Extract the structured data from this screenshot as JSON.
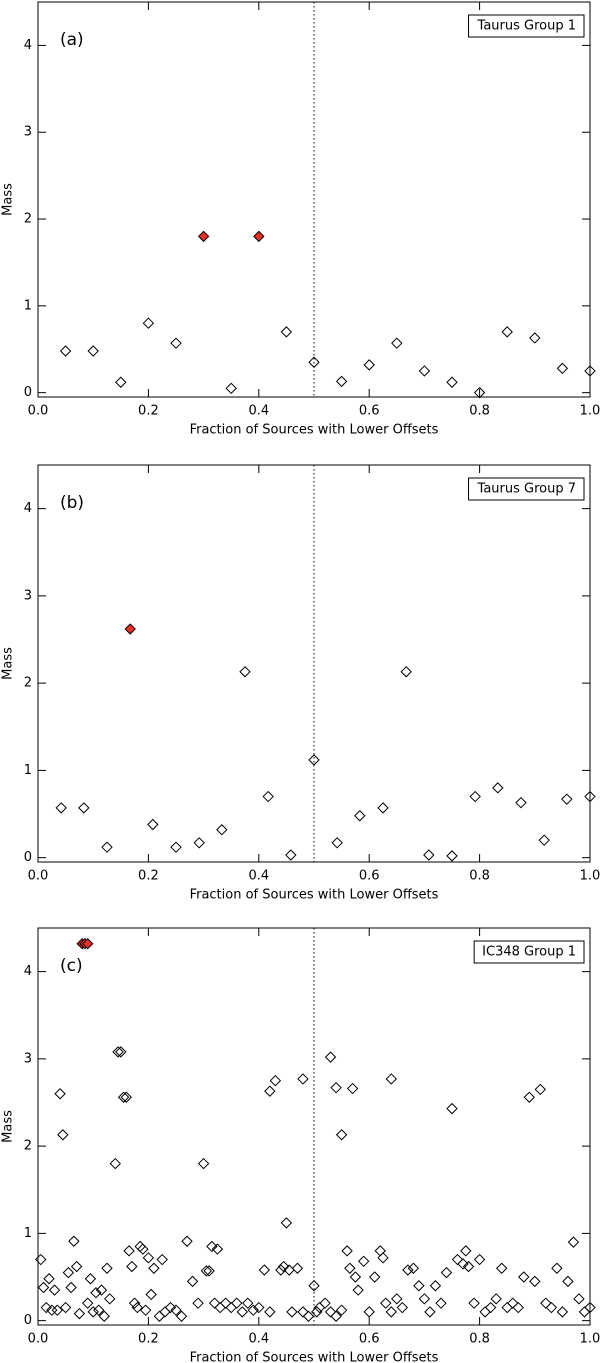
{
  "chart_data": [
    {
      "type": "scatter",
      "panel_label": "(a)",
      "annotation": "Taurus Group 1",
      "xlabel": "Fraction of Sources with Lower Offsets",
      "ylabel": "Mass",
      "xlim": [
        0,
        1
      ],
      "ylim": [
        -0.05,
        4.5
      ],
      "xticks": [
        {
          "value": 0,
          "label": "0.0"
        },
        {
          "value": 0.2,
          "label": "0.2"
        },
        {
          "value": 0.4,
          "label": "0.4"
        },
        {
          "value": 0.6,
          "label": "0.6"
        },
        {
          "value": 0.8,
          "label": "0.8"
        },
        {
          "value": 1,
          "label": "1.0"
        }
      ],
      "yticks": [
        0,
        1,
        2,
        3,
        4
      ],
      "vline": 0.5,
      "series": [
        {
          "color": "#000000",
          "marker": "open-diamond",
          "x": [
            0.05,
            0.1,
            0.15,
            0.2,
            0.25,
            0.35,
            0.45,
            0.5,
            0.55,
            0.6,
            0.65,
            0.7,
            0.75,
            0.8,
            0.85,
            0.9,
            0.95,
            1.0
          ],
          "values": [
            0.48,
            0.48,
            0.12,
            0.8,
            0.57,
            0.05,
            0.7,
            0.35,
            0.13,
            0.32,
            0.57,
            0.25,
            0.12,
            0.0,
            0.7,
            0.63,
            0.28,
            0.25
          ]
        },
        {
          "color": "#e8302a",
          "marker": "filled-diamond",
          "x": [
            0.3,
            0.4
          ],
          "values": [
            1.8,
            1.8
          ]
        }
      ]
    },
    {
      "type": "scatter",
      "panel_label": "(b)",
      "annotation": "Taurus Group 7",
      "xlabel": "Fraction of Sources with Lower Offsets",
      "ylabel": "Mass",
      "xlim": [
        0,
        1
      ],
      "ylim": [
        -0.05,
        4.5
      ],
      "xticks": [
        {
          "value": 0,
          "label": "0.0"
        },
        {
          "value": 0.2,
          "label": "0.2"
        },
        {
          "value": 0.4,
          "label": "0.4"
        },
        {
          "value": 0.6,
          "label": "0.6"
        },
        {
          "value": 0.8,
          "label": "0.8"
        },
        {
          "value": 1,
          "label": "1.0"
        }
      ],
      "yticks": [
        0,
        1,
        2,
        3,
        4
      ],
      "vline": 0.5,
      "series": [
        {
          "color": "#000000",
          "marker": "open-diamond",
          "x": [
            0.042,
            0.083,
            0.125,
            0.208,
            0.25,
            0.292,
            0.333,
            0.375,
            0.417,
            0.458,
            0.5,
            0.542,
            0.583,
            0.625,
            0.667,
            0.708,
            0.75,
            0.792,
            0.833,
            0.875,
            0.917,
            0.958,
            1.0
          ],
          "values": [
            0.57,
            0.57,
            0.12,
            0.38,
            0.12,
            0.17,
            0.32,
            2.13,
            0.7,
            0.03,
            1.12,
            0.17,
            0.48,
            0.57,
            2.13,
            0.03,
            0.02,
            0.7,
            0.8,
            0.63,
            0.2,
            0.67,
            0.7
          ]
        },
        {
          "color": "#e8302a",
          "marker": "filled-diamond",
          "x": [
            0.167
          ],
          "values": [
            2.62
          ]
        }
      ]
    },
    {
      "type": "scatter",
      "panel_label": "(c)",
      "annotation": "IC348 Group 1",
      "xlabel": "Fraction of Sources with Lower Offsets",
      "ylabel": "Mass",
      "xlim": [
        0,
        1
      ],
      "ylim": [
        -0.05,
        4.5
      ],
      "xticks": [
        {
          "value": 0,
          "label": "0.0"
        },
        {
          "value": 0.2,
          "label": "0.2"
        },
        {
          "value": 0.4,
          "label": "0.4"
        },
        {
          "value": 0.6,
          "label": "0.6"
        },
        {
          "value": 0.8,
          "label": "0.8"
        },
        {
          "value": 1,
          "label": "1.0"
        }
      ],
      "yticks": [
        0,
        1,
        2,
        3,
        4
      ],
      "vline": 0.5,
      "series": [
        {
          "color": "#000000",
          "marker": "open-diamond",
          "x": [
            0.04,
            0.045,
            0.14,
            0.145,
            0.15,
            0.155,
            0.16,
            0.3,
            0.42,
            0.43,
            0.48,
            0.53,
            0.54,
            0.55,
            0.57,
            0.64,
            0.75,
            0.89,
            0.91,
            0.005,
            0.01,
            0.015,
            0.02,
            0.025,
            0.03,
            0.035,
            0.05,
            0.055,
            0.06,
            0.065,
            0.07,
            0.075,
            0.09,
            0.095,
            0.1,
            0.105,
            0.11,
            0.115,
            0.12,
            0.125,
            0.13,
            0.165,
            0.17,
            0.175,
            0.18,
            0.185,
            0.19,
            0.195,
            0.2,
            0.205,
            0.21,
            0.22,
            0.225,
            0.23,
            0.24,
            0.25,
            0.26,
            0.27,
            0.28,
            0.29,
            0.305,
            0.31,
            0.315,
            0.32,
            0.325,
            0.33,
            0.34,
            0.35,
            0.36,
            0.37,
            0.38,
            0.39,
            0.4,
            0.41,
            0.42,
            0.44,
            0.445,
            0.45,
            0.455,
            0.46,
            0.47,
            0.48,
            0.49,
            0.5,
            0.505,
            0.51,
            0.52,
            0.53,
            0.54,
            0.55,
            0.56,
            0.565,
            0.575,
            0.58,
            0.59,
            0.6,
            0.61,
            0.62,
            0.625,
            0.63,
            0.64,
            0.65,
            0.66,
            0.67,
            0.68,
            0.69,
            0.7,
            0.71,
            0.72,
            0.73,
            0.74,
            0.76,
            0.77,
            0.775,
            0.78,
            0.79,
            0.8,
            0.81,
            0.82,
            0.83,
            0.84,
            0.85,
            0.86,
            0.87,
            0.88,
            0.9,
            0.92,
            0.93,
            0.94,
            0.95,
            0.96,
            0.97,
            0.98,
            0.99,
            1.0
          ],
          "values": [
            2.6,
            2.13,
            1.8,
            3.08,
            3.08,
            2.56,
            2.56,
            1.8,
            2.63,
            2.75,
            2.77,
            3.02,
            2.67,
            2.13,
            2.66,
            2.77,
            2.43,
            2.56,
            2.65,
            0.7,
            0.38,
            0.15,
            0.48,
            0.12,
            0.35,
            0.12,
            0.15,
            0.55,
            0.38,
            0.91,
            0.62,
            0.08,
            0.2,
            0.48,
            0.1,
            0.32,
            0.12,
            0.35,
            0.05,
            0.6,
            0.25,
            0.8,
            0.62,
            0.2,
            0.15,
            0.85,
            0.82,
            0.12,
            0.72,
            0.3,
            0.6,
            0.05,
            0.7,
            0.1,
            0.15,
            0.12,
            0.05,
            0.91,
            0.45,
            0.2,
            0.57,
            0.57,
            0.85,
            0.2,
            0.82,
            0.15,
            0.2,
            0.15,
            0.2,
            0.1,
            0.2,
            0.12,
            0.15,
            0.58,
            0.1,
            0.58,
            0.62,
            1.12,
            0.58,
            0.1,
            0.6,
            0.1,
            0.05,
            0.4,
            0.1,
            0.15,
            0.2,
            0.1,
            0.05,
            0.12,
            0.8,
            0.6,
            0.5,
            0.35,
            0.68,
            0.1,
            0.5,
            0.8,
            0.72,
            0.2,
            0.1,
            0.25,
            0.15,
            0.58,
            0.6,
            0.4,
            0.25,
            0.1,
            0.4,
            0.2,
            0.55,
            0.7,
            0.65,
            0.8,
            0.62,
            0.2,
            0.7,
            0.1,
            0.15,
            0.25,
            0.6,
            0.15,
            0.2,
            0.15,
            0.5,
            0.45,
            0.2,
            0.15,
            0.6,
            0.1,
            0.45,
            0.9,
            0.25,
            0.1,
            0.15
          ]
        },
        {
          "color": "#e8302a",
          "marker": "filled-diamond",
          "x": [
            0.08,
            0.085,
            0.09
          ],
          "values": [
            4.32,
            4.32,
            4.32
          ]
        }
      ]
    }
  ]
}
